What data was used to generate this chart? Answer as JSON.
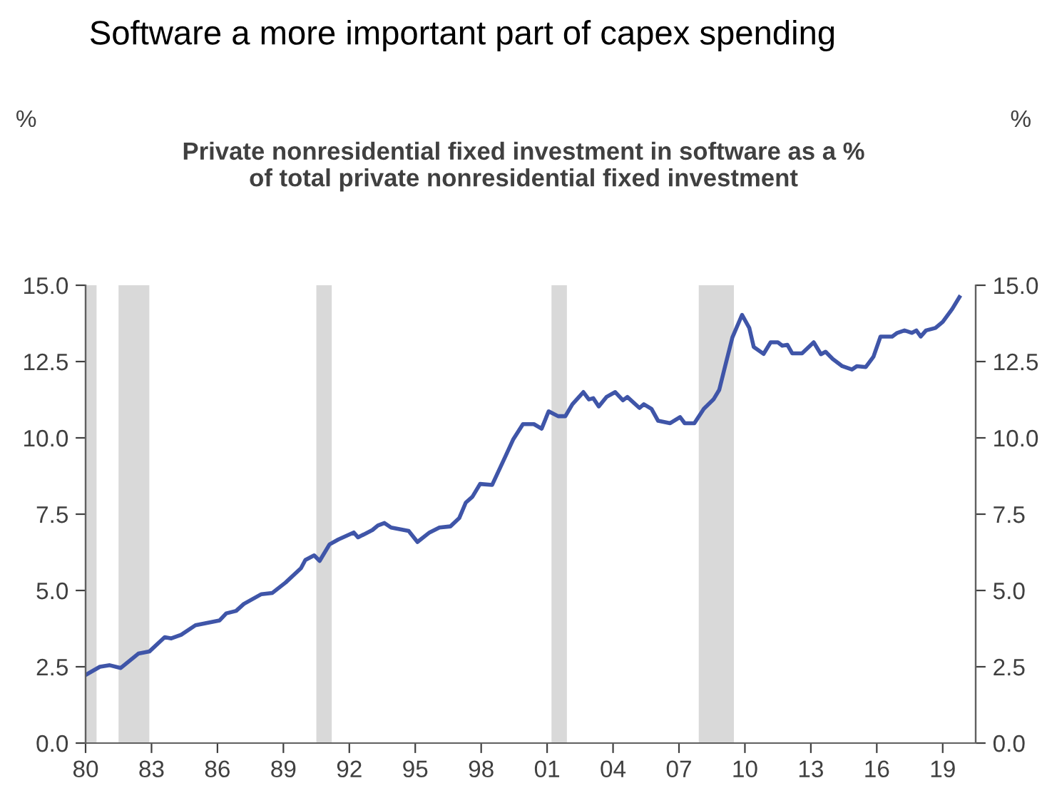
{
  "chart_data": {
    "type": "line",
    "title": "Software a more important part of capex spending",
    "subtitle": "Private nonresidential fixed investment in software as a %\nof total private nonresidential fixed investment",
    "annotations": [
      "%",
      "%"
    ],
    "series": [
      {
        "color": "#3f55a8",
        "x": [
          1980.0,
          1980.65,
          1981.1,
          1981.6,
          1982.4,
          1982.9,
          1983.6,
          1983.9,
          1984.35,
          1985.0,
          1986.1,
          1986.4,
          1986.85,
          1987.2,
          1988.0,
          1988.5,
          1989.1,
          1989.8,
          1990.0,
          1990.4,
          1990.65,
          1991.1,
          1991.5,
          1992.2,
          1992.4,
          1993.05,
          1993.3,
          1993.6,
          1993.9,
          1994.7,
          1995.1,
          1995.65,
          1996.1,
          1996.6,
          1997.0,
          1997.3,
          1997.6,
          1997.95,
          1998.5,
          1998.7,
          1999.1,
          1999.45,
          1999.9,
          2000.4,
          2000.75,
          2001.07,
          2001.5,
          2001.83,
          2002.15,
          2002.65,
          2002.9,
          2003.1,
          2003.35,
          2003.7,
          2004.1,
          2004.45,
          2004.65,
          2005.2,
          2005.4,
          2005.75,
          2006.05,
          2006.6,
          2007.05,
          2007.26,
          2007.7,
          2008.13,
          2008.57,
          2008.83,
          2009.1,
          2009.43,
          2009.87,
          2010.2,
          2010.4,
          2010.85,
          2011.17,
          2011.5,
          2011.7,
          2011.93,
          2012.15,
          2012.6,
          2013.13,
          2013.46,
          2013.67,
          2014.0,
          2014.43,
          2014.87,
          2015.1,
          2015.5,
          2015.85,
          2016.17,
          2016.7,
          2016.93,
          2017.26,
          2017.6,
          2017.8,
          2018.0,
          2018.24,
          2018.67,
          2019.0,
          2019.43,
          2019.76
        ],
        "values": [
          2.23,
          2.5,
          2.55,
          2.46,
          2.93,
          3.0,
          3.47,
          3.43,
          3.55,
          3.86,
          4.02,
          4.25,
          4.33,
          4.56,
          4.88,
          4.92,
          5.26,
          5.73,
          6.0,
          6.15,
          5.97,
          6.51,
          6.67,
          6.9,
          6.74,
          6.98,
          7.13,
          7.21,
          7.06,
          6.95,
          6.59,
          6.9,
          7.06,
          7.1,
          7.37,
          7.88,
          8.07,
          8.49,
          8.46,
          8.77,
          9.39,
          9.94,
          10.45,
          10.45,
          10.3,
          10.87,
          10.71,
          10.71,
          11.1,
          11.5,
          11.26,
          11.3,
          11.03,
          11.34,
          11.5,
          11.23,
          11.34,
          10.98,
          11.1,
          10.95,
          10.56,
          10.48,
          10.68,
          10.48,
          10.48,
          10.95,
          11.26,
          11.57,
          12.35,
          13.29,
          14.03,
          13.6,
          12.98,
          12.75,
          13.13,
          13.13,
          13.02,
          13.05,
          12.77,
          12.77,
          13.13,
          12.74,
          12.82,
          12.58,
          12.35,
          12.24,
          12.35,
          12.32,
          12.66,
          13.32,
          13.32,
          13.44,
          13.52,
          13.44,
          13.52,
          13.32,
          13.52,
          13.6,
          13.8,
          14.22,
          14.61
        ]
      }
    ],
    "bands": [
      {
        "axis": "x",
        "from": 1980.0,
        "to": 1980.5,
        "color": "#d9d9d9"
      },
      {
        "axis": "x",
        "from": 1981.5,
        "to": 1982.9,
        "color": "#d9d9d9"
      },
      {
        "axis": "x",
        "from": 1990.5,
        "to": 1991.2,
        "color": "#d9d9d9"
      },
      {
        "axis": "x",
        "from": 2001.2,
        "to": 2001.9,
        "color": "#d9d9d9"
      },
      {
        "axis": "x",
        "from": 2007.9,
        "to": 2009.5,
        "color": "#d9d9d9"
      }
    ],
    "xlim": [
      1980,
      2020.5
    ],
    "xticks": [
      {
        "value": 1980,
        "label": "80"
      },
      {
        "value": 1983,
        "label": "83"
      },
      {
        "value": 1986,
        "label": "86"
      },
      {
        "value": 1989,
        "label": "89"
      },
      {
        "value": 1992,
        "label": "92"
      },
      {
        "value": 1995,
        "label": "95"
      },
      {
        "value": 1998,
        "label": "98"
      },
      {
        "value": 2001,
        "label": "01"
      },
      {
        "value": 2004,
        "label": "04"
      },
      {
        "value": 2007,
        "label": "07"
      },
      {
        "value": 2010,
        "label": "10"
      },
      {
        "value": 2013,
        "label": "13"
      },
      {
        "value": 2016,
        "label": "16"
      },
      {
        "value": 2019,
        "label": "19"
      }
    ],
    "ylim": [
      0,
      15
    ],
    "yticks": [
      {
        "value": 0,
        "label": "0.0"
      },
      {
        "value": 2.5,
        "label": "2.5"
      },
      {
        "value": 5,
        "label": "5.0"
      },
      {
        "value": 7.5,
        "label": "7.5"
      },
      {
        "value": 10,
        "label": "10.0"
      },
      {
        "value": 12.5,
        "label": "12.5"
      },
      {
        "value": 15,
        "label": "15.0"
      }
    ],
    "y2lim": [
      0,
      15
    ],
    "y2ticks": [
      {
        "value": 0,
        "label": "0.0"
      },
      {
        "value": 2.5,
        "label": "2.5"
      },
      {
        "value": 5,
        "label": "5.0"
      },
      {
        "value": 7.5,
        "label": "7.5"
      },
      {
        "value": 10,
        "label": "10.0"
      },
      {
        "value": 12.5,
        "label": "12.5"
      },
      {
        "value": 15,
        "label": "15.0"
      }
    ],
    "grid": false,
    "legend": false,
    "line_style": "solid",
    "marker": "none"
  }
}
